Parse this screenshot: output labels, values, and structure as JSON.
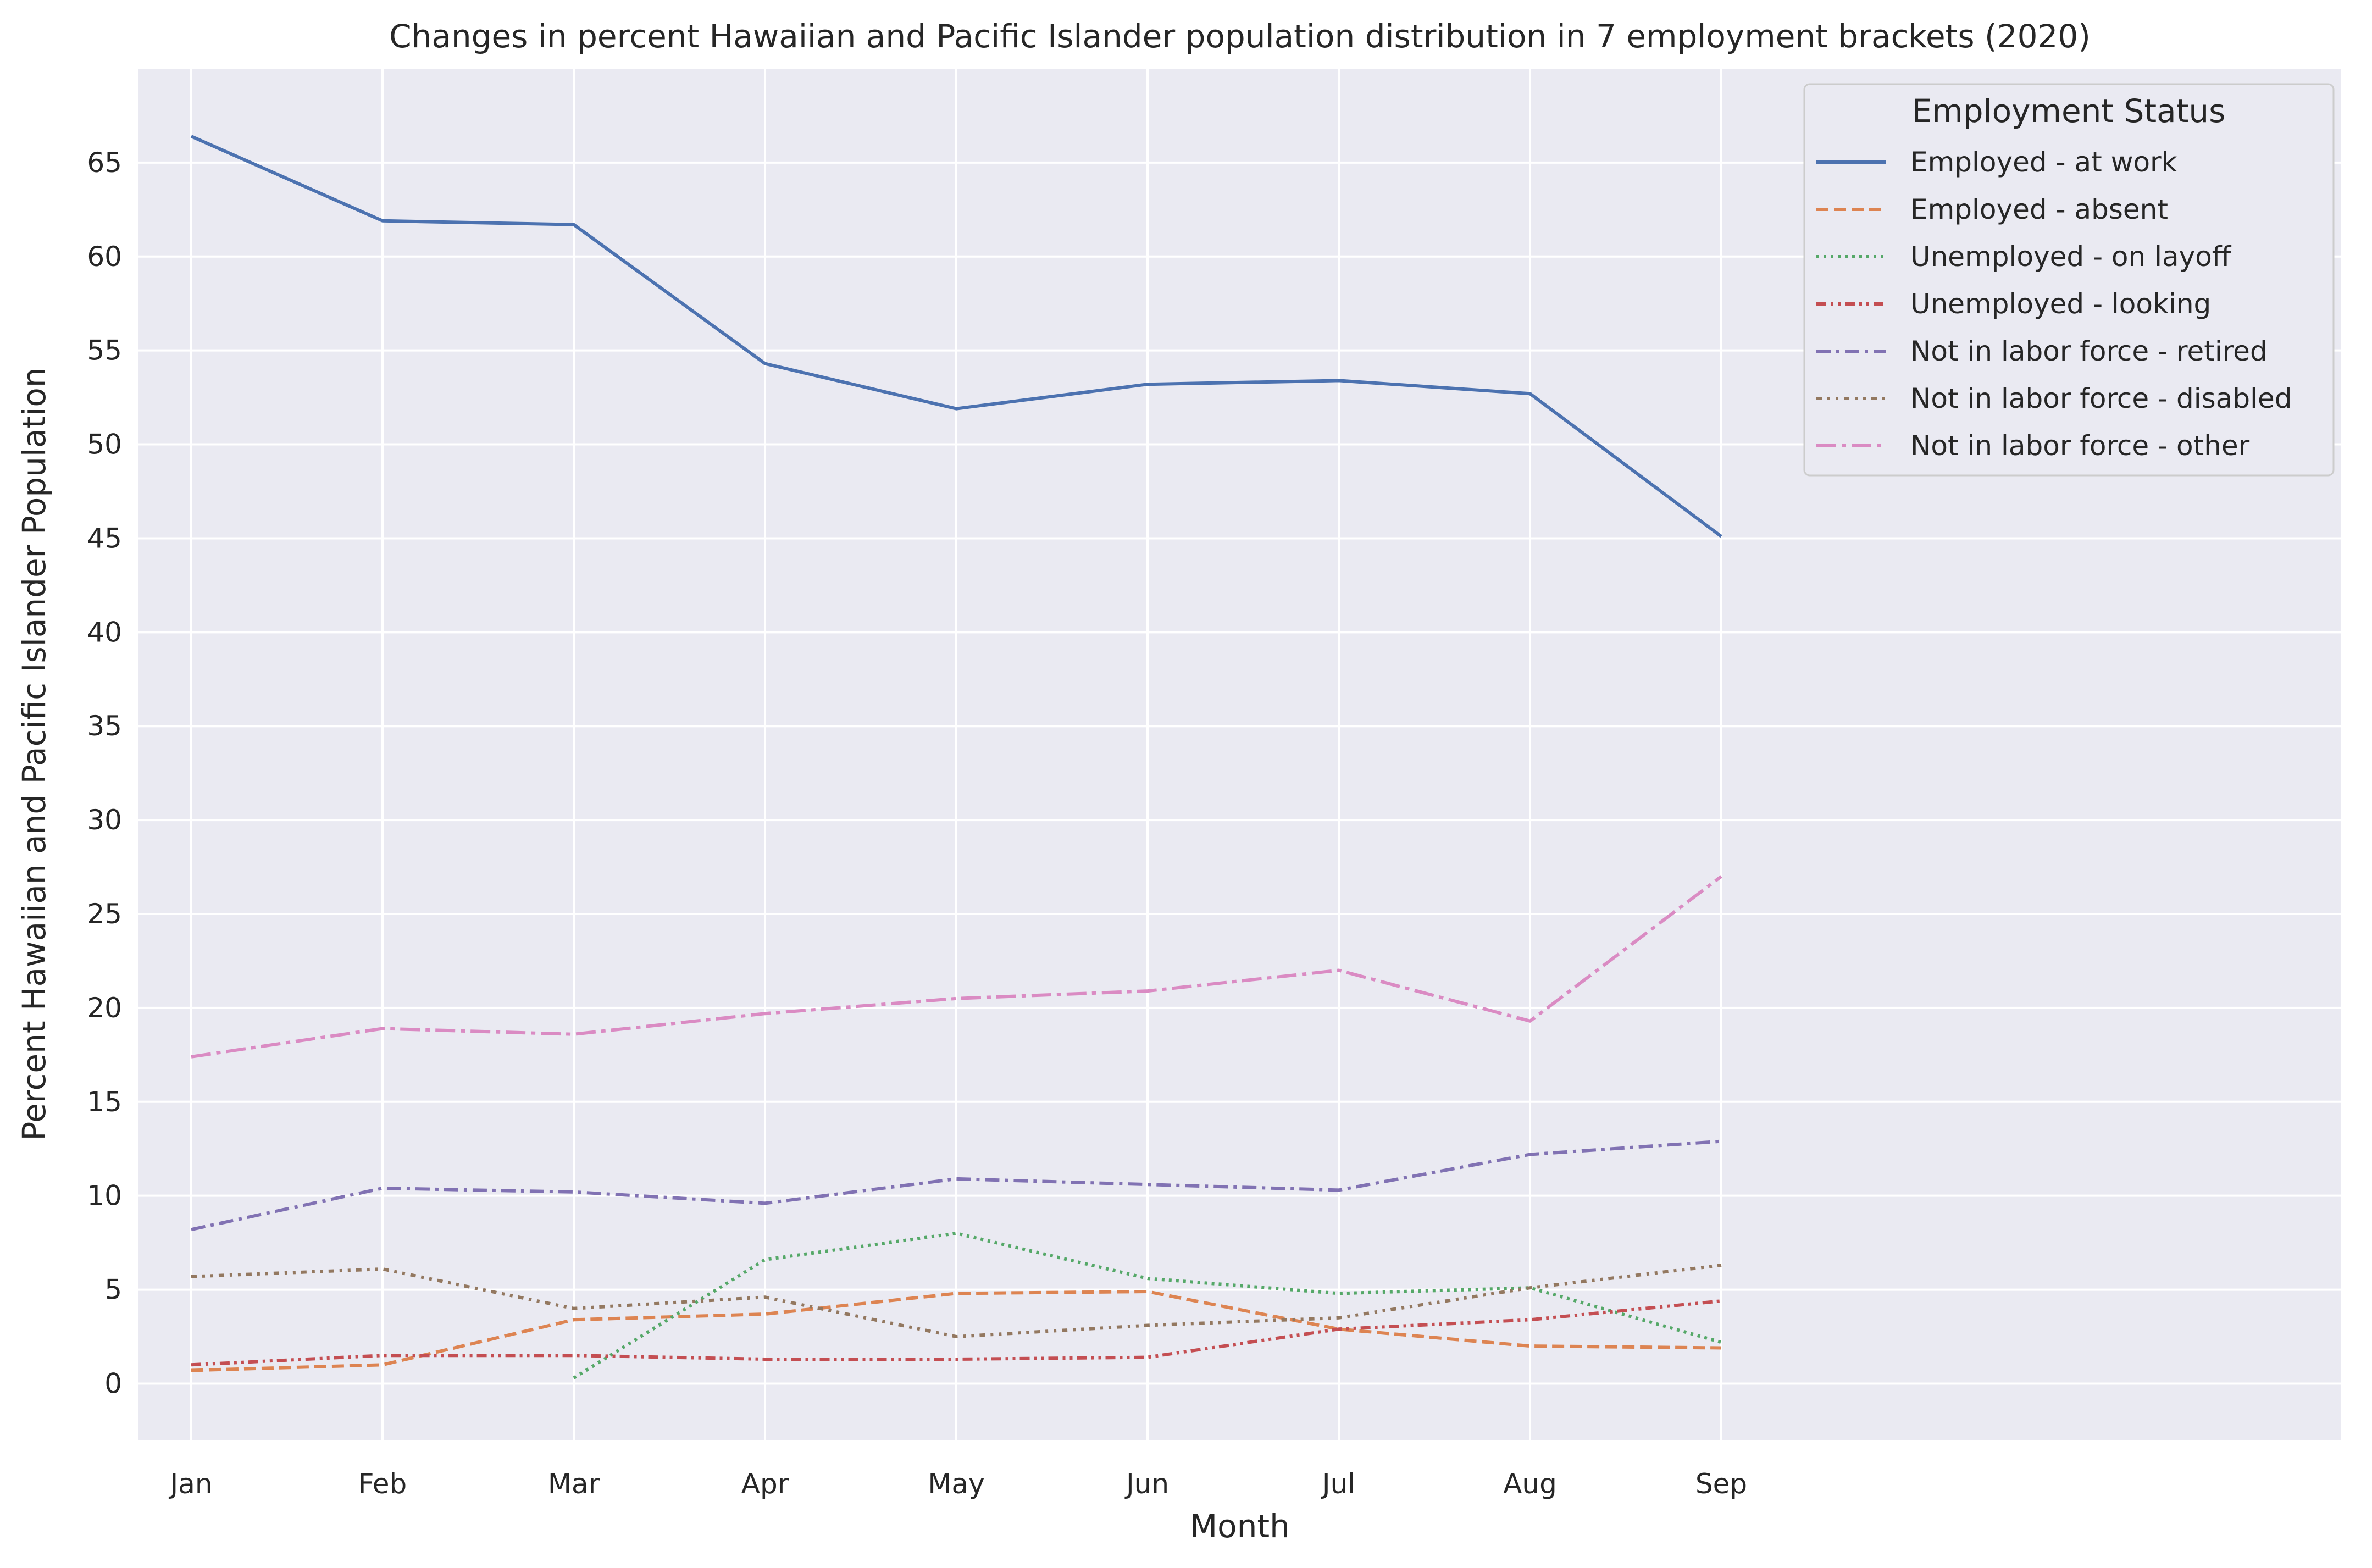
{
  "chart_data": {
    "type": "line",
    "title": "Changes in percent Hawaiian and Pacific Islander population distribution in 7 employment brackets (2020)",
    "xlabel": "Month",
    "ylabel": "Percent Hawaiian and Pacific Islander Population",
    "categories": [
      "Jan",
      "Feb",
      "Mar",
      "Apr",
      "May",
      "Jun",
      "Jul",
      "Aug",
      "Sep"
    ],
    "ylim": [
      -3,
      70
    ],
    "yticks": [
      0,
      5,
      10,
      15,
      20,
      25,
      30,
      35,
      40,
      45,
      50,
      55,
      60,
      65
    ],
    "grid": true,
    "legend_title": "Employment Status",
    "legend_position": "top-right",
    "series": [
      {
        "name": "Employed - at work",
        "color": "#4c72b0",
        "dash": "solid",
        "values": [
          66.4,
          61.9,
          61.7,
          54.3,
          51.9,
          53.2,
          53.4,
          52.7,
          45.1
        ]
      },
      {
        "name": "Employed - absent",
        "color": "#dd8452",
        "dash": "dashed",
        "values": [
          0.7,
          1.0,
          3.4,
          3.7,
          4.8,
          4.9,
          2.9,
          2.0,
          1.9
        ]
      },
      {
        "name": "Unemployed - on layoff",
        "color": "#55a868",
        "dash": "dotted",
        "values": [
          null,
          null,
          0.3,
          6.6,
          8.0,
          5.6,
          4.8,
          5.1,
          2.2
        ]
      },
      {
        "name": "Unemployed - looking",
        "color": "#c44e52",
        "dash": "dashdotdot",
        "values": [
          1.0,
          1.5,
          1.5,
          1.3,
          1.3,
          1.4,
          2.9,
          3.4,
          4.4
        ]
      },
      {
        "name": "Not in labor force - retired",
        "color": "#8172b3",
        "dash": "dashdot",
        "values": [
          8.2,
          10.4,
          10.2,
          9.6,
          10.9,
          10.6,
          10.3,
          12.2,
          12.9
        ]
      },
      {
        "name": "Not in labor force - disabled",
        "color": "#937860",
        "dash": "dashdotdotlong",
        "values": [
          5.7,
          6.1,
          4.0,
          4.6,
          2.5,
          3.1,
          3.5,
          5.1,
          6.3
        ]
      },
      {
        "name": "Not in labor force - other",
        "color": "#da8bc3",
        "dash": "longdashdot",
        "values": [
          17.4,
          18.9,
          18.6,
          19.7,
          20.5,
          20.9,
          22.0,
          19.3,
          27.0
        ]
      }
    ]
  }
}
